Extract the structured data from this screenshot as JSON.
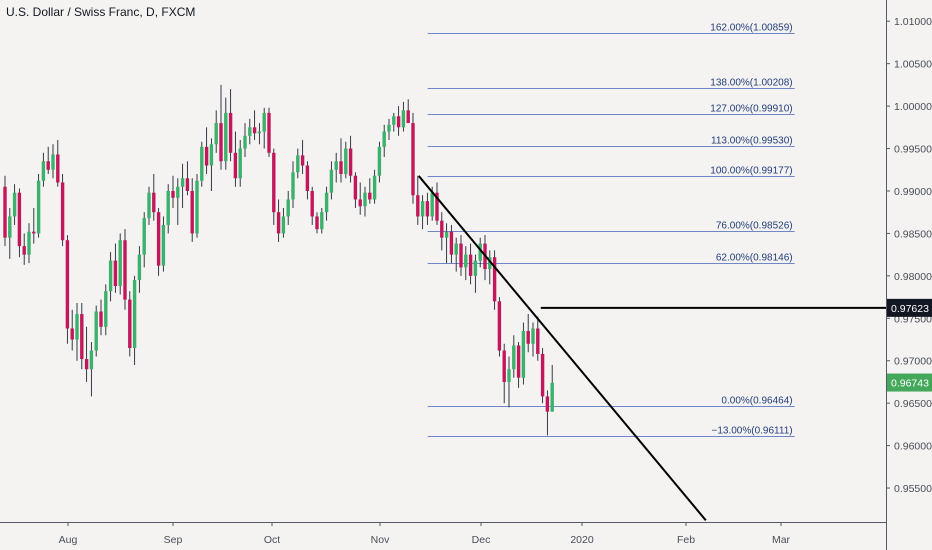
{
  "chart_data": {
    "type": "candlestick",
    "title": "U.S. Dollar / Swiss Franc, D, FXCM",
    "ylim": [
      0.951,
      1.0125
    ],
    "y_ticks": [
      "1.01000",
      "1.00500",
      "1.00000",
      "0.99500",
      "0.99000",
      "0.98500",
      "0.98000",
      "0.97500",
      "0.97000",
      "0.96500",
      "0.96000",
      "0.95500"
    ],
    "x_ticks": [
      {
        "label": "Aug",
        "x": 0
      },
      {
        "label": "Sep",
        "x": 21
      },
      {
        "label": "Oct",
        "x": 41
      },
      {
        "label": "Nov",
        "x": 64
      },
      {
        "label": "Dec",
        "x": 85
      },
      {
        "label": "2020",
        "x": 107
      },
      {
        "label": "Feb",
        "x": 127
      },
      {
        "label": "Mar",
        "x": 145
      }
    ],
    "candles": [
      {
        "o": 0.9905,
        "h": 0.9918,
        "l": 0.9835,
        "c": 0.9845
      },
      {
        "o": 0.9845,
        "h": 0.988,
        "l": 0.982,
        "c": 0.987
      },
      {
        "o": 0.987,
        "h": 0.9908,
        "l": 0.986,
        "c": 0.9898
      },
      {
        "o": 0.9898,
        "h": 0.9903,
        "l": 0.9822,
        "c": 0.9835
      },
      {
        "o": 0.9835,
        "h": 0.985,
        "l": 0.9813,
        "c": 0.9825
      },
      {
        "o": 0.9825,
        "h": 0.9862,
        "l": 0.9815,
        "c": 0.9852
      },
      {
        "o": 0.9852,
        "h": 0.988,
        "l": 0.9838,
        "c": 0.985
      },
      {
        "o": 0.985,
        "h": 0.992,
        "l": 0.9845,
        "c": 0.9912
      },
      {
        "o": 0.9912,
        "h": 0.9945,
        "l": 0.9905,
        "c": 0.9935
      },
      {
        "o": 0.9935,
        "h": 0.9952,
        "l": 0.992,
        "c": 0.9925
      },
      {
        "o": 0.9925,
        "h": 0.9955,
        "l": 0.9915,
        "c": 0.9943
      },
      {
        "o": 0.9943,
        "h": 0.996,
        "l": 0.9905,
        "c": 0.991
      },
      {
        "o": 0.991,
        "h": 0.992,
        "l": 0.9835,
        "c": 0.9842
      },
      {
        "o": 0.9842,
        "h": 0.9848,
        "l": 0.972,
        "c": 0.9738
      },
      {
        "o": 0.9738,
        "h": 0.976,
        "l": 0.9712,
        "c": 0.9725
      },
      {
        "o": 0.9725,
        "h": 0.9768,
        "l": 0.97,
        "c": 0.9755
      },
      {
        "o": 0.9755,
        "h": 0.9768,
        "l": 0.969,
        "c": 0.9702
      },
      {
        "o": 0.9702,
        "h": 0.974,
        "l": 0.9675,
        "c": 0.969
      },
      {
        "o": 0.969,
        "h": 0.9722,
        "l": 0.9658,
        "c": 0.9712
      },
      {
        "o": 0.9712,
        "h": 0.9765,
        "l": 0.9705,
        "c": 0.9758
      },
      {
        "o": 0.9758,
        "h": 0.9772,
        "l": 0.973,
        "c": 0.974
      },
      {
        "o": 0.974,
        "h": 0.979,
        "l": 0.973,
        "c": 0.9782
      },
      {
        "o": 0.9782,
        "h": 0.9828,
        "l": 0.977,
        "c": 0.9818
      },
      {
        "o": 0.9818,
        "h": 0.9838,
        "l": 0.978,
        "c": 0.9788
      },
      {
        "o": 0.9788,
        "h": 0.985,
        "l": 0.9778,
        "c": 0.9842
      },
      {
        "o": 0.9842,
        "h": 0.9855,
        "l": 0.976,
        "c": 0.9772
      },
      {
        "o": 0.9772,
        "h": 0.9782,
        "l": 0.9705,
        "c": 0.9715
      },
      {
        "o": 0.9715,
        "h": 0.98,
        "l": 0.9695,
        "c": 0.9795
      },
      {
        "o": 0.9795,
        "h": 0.9835,
        "l": 0.978,
        "c": 0.9825
      },
      {
        "o": 0.9825,
        "h": 0.9875,
        "l": 0.981,
        "c": 0.9868
      },
      {
        "o": 0.9868,
        "h": 0.9905,
        "l": 0.986,
        "c": 0.9898
      },
      {
        "o": 0.9898,
        "h": 0.992,
        "l": 0.9865,
        "c": 0.9875
      },
      {
        "o": 0.9875,
        "h": 0.988,
        "l": 0.98,
        "c": 0.9812
      },
      {
        "o": 0.9812,
        "h": 0.987,
        "l": 0.9805,
        "c": 0.986
      },
      {
        "o": 0.986,
        "h": 0.9908,
        "l": 0.985,
        "c": 0.99
      },
      {
        "o": 0.99,
        "h": 0.9918,
        "l": 0.988,
        "c": 0.9892
      },
      {
        "o": 0.9892,
        "h": 0.9915,
        "l": 0.986,
        "c": 0.9905
      },
      {
        "o": 0.9905,
        "h": 0.9932,
        "l": 0.988,
        "c": 0.9915
      },
      {
        "o": 0.9915,
        "h": 0.9935,
        "l": 0.9895,
        "c": 0.99
      },
      {
        "o": 0.99,
        "h": 0.9915,
        "l": 0.984,
        "c": 0.985
      },
      {
        "o": 0.985,
        "h": 0.992,
        "l": 0.9845,
        "c": 0.9912
      },
      {
        "o": 0.9912,
        "h": 0.9958,
        "l": 0.9905,
        "c": 0.9952
      },
      {
        "o": 0.9952,
        "h": 0.9975,
        "l": 0.992,
        "c": 0.993
      },
      {
        "o": 0.993,
        "h": 0.9962,
        "l": 0.99,
        "c": 0.9955
      },
      {
        "o": 0.9955,
        "h": 0.9995,
        "l": 0.9945,
        "c": 0.998
      },
      {
        "o": 0.998,
        "h": 1.0025,
        "l": 0.9925,
        "c": 0.9935
      },
      {
        "o": 0.9935,
        "h": 1.001,
        "l": 0.9925,
        "c": 0.9992
      },
      {
        "o": 0.9992,
        "h": 1.002,
        "l": 0.9935,
        "c": 0.9945
      },
      {
        "o": 0.9945,
        "h": 0.997,
        "l": 0.9905,
        "c": 0.9915
      },
      {
        "o": 0.9915,
        "h": 0.996,
        "l": 0.9905,
        "c": 0.995
      },
      {
        "o": 0.995,
        "h": 0.998,
        "l": 0.994,
        "c": 0.9965
      },
      {
        "o": 0.9965,
        "h": 0.9985,
        "l": 0.9955,
        "c": 0.9975
      },
      {
        "o": 0.9975,
        "h": 0.9995,
        "l": 0.996,
        "c": 0.9968
      },
      {
        "o": 0.9968,
        "h": 0.998,
        "l": 0.9955,
        "c": 0.997
      },
      {
        "o": 0.997,
        "h": 0.9998,
        "l": 0.995,
        "c": 0.9992
      },
      {
        "o": 0.9992,
        "h": 0.9998,
        "l": 0.994,
        "c": 0.9945
      },
      {
        "o": 0.9945,
        "h": 0.995,
        "l": 0.986,
        "c": 0.9875
      },
      {
        "o": 0.9875,
        "h": 0.989,
        "l": 0.984,
        "c": 0.985
      },
      {
        "o": 0.985,
        "h": 0.988,
        "l": 0.9845,
        "c": 0.987
      },
      {
        "o": 0.987,
        "h": 0.99,
        "l": 0.986,
        "c": 0.989
      },
      {
        "o": 0.989,
        "h": 0.9935,
        "l": 0.988,
        "c": 0.9922
      },
      {
        "o": 0.9922,
        "h": 0.995,
        "l": 0.9915,
        "c": 0.9942
      },
      {
        "o": 0.9942,
        "h": 0.996,
        "l": 0.992,
        "c": 0.993
      },
      {
        "o": 0.993,
        "h": 0.9935,
        "l": 0.989,
        "c": 0.99
      },
      {
        "o": 0.99,
        "h": 0.9905,
        "l": 0.986,
        "c": 0.987
      },
      {
        "o": 0.987,
        "h": 0.9875,
        "l": 0.985,
        "c": 0.9855
      },
      {
        "o": 0.9855,
        "h": 0.988,
        "l": 0.985,
        "c": 0.9875
      },
      {
        "o": 0.9875,
        "h": 0.9905,
        "l": 0.9865,
        "c": 0.9898
      },
      {
        "o": 0.9898,
        "h": 0.9935,
        "l": 0.989,
        "c": 0.9925
      },
      {
        "o": 0.9925,
        "h": 0.9945,
        "l": 0.991,
        "c": 0.9935
      },
      {
        "o": 0.9935,
        "h": 0.9962,
        "l": 0.991,
        "c": 0.992
      },
      {
        "o": 0.992,
        "h": 0.9958,
        "l": 0.9915,
        "c": 0.995
      },
      {
        "o": 0.995,
        "h": 0.9965,
        "l": 0.991,
        "c": 0.9918
      },
      {
        "o": 0.9918,
        "h": 0.9922,
        "l": 0.988,
        "c": 0.989
      },
      {
        "o": 0.989,
        "h": 0.991,
        "l": 0.9872,
        "c": 0.9882
      },
      {
        "o": 0.9882,
        "h": 0.9905,
        "l": 0.987,
        "c": 0.9898
      },
      {
        "o": 0.9898,
        "h": 0.9915,
        "l": 0.9885,
        "c": 0.989
      },
      {
        "o": 0.989,
        "h": 0.9925,
        "l": 0.9885,
        "c": 0.9918
      },
      {
        "o": 0.9918,
        "h": 0.9958,
        "l": 0.991,
        "c": 0.9952
      },
      {
        "o": 0.9952,
        "h": 0.9978,
        "l": 0.994,
        "c": 0.997
      },
      {
        "o": 0.997,
        "h": 0.9985,
        "l": 0.996,
        "c": 0.9978
      },
      {
        "o": 0.9978,
        "h": 0.9992,
        "l": 0.997,
        "c": 0.9988
      },
      {
        "o": 0.9988,
        "h": 1.0,
        "l": 0.9965,
        "c": 0.9975
      },
      {
        "o": 0.9975,
        "h": 1.0005,
        "l": 0.997,
        "c": 0.9995
      },
      {
        "o": 0.9995,
        "h": 1.0008,
        "l": 0.9985,
        "c": 0.998
      },
      {
        "o": 0.998,
        "h": 0.9992,
        "l": 0.9885,
        "c": 0.9895
      },
      {
        "o": 0.9895,
        "h": 0.9918,
        "l": 0.986,
        "c": 0.987
      },
      {
        "o": 0.987,
        "h": 0.9895,
        "l": 0.9855,
        "c": 0.9888
      },
      {
        "o": 0.9888,
        "h": 0.9898,
        "l": 0.986,
        "c": 0.987
      },
      {
        "o": 0.987,
        "h": 0.9905,
        "l": 0.9865,
        "c": 0.9898
      },
      {
        "o": 0.9898,
        "h": 0.991,
        "l": 0.986,
        "c": 0.9865
      },
      {
        "o": 0.9865,
        "h": 0.9875,
        "l": 0.983,
        "c": 0.9845
      },
      {
        "o": 0.9845,
        "h": 0.9862,
        "l": 0.9815,
        "c": 0.9852
      },
      {
        "o": 0.9852,
        "h": 0.986,
        "l": 0.9815,
        "c": 0.9825
      },
      {
        "o": 0.9825,
        "h": 0.9845,
        "l": 0.9805,
        "c": 0.9838
      },
      {
        "o": 0.9838,
        "h": 0.9848,
        "l": 0.98,
        "c": 0.981
      },
      {
        "o": 0.981,
        "h": 0.9835,
        "l": 0.9795,
        "c": 0.9825
      },
      {
        "o": 0.9825,
        "h": 0.9838,
        "l": 0.979,
        "c": 0.98
      },
      {
        "o": 0.98,
        "h": 0.9825,
        "l": 0.978,
        "c": 0.9818
      },
      {
        "o": 0.9818,
        "h": 0.9845,
        "l": 0.981,
        "c": 0.9838
      },
      {
        "o": 0.9838,
        "h": 0.9848,
        "l": 0.9795,
        "c": 0.9808
      },
      {
        "o": 0.9808,
        "h": 0.983,
        "l": 0.979,
        "c": 0.9822
      },
      {
        "o": 0.9822,
        "h": 0.983,
        "l": 0.976,
        "c": 0.977
      },
      {
        "o": 0.977,
        "h": 0.9775,
        "l": 0.9705,
        "c": 0.9712
      },
      {
        "o": 0.9712,
        "h": 0.972,
        "l": 0.965,
        "c": 0.9675
      },
      {
        "o": 0.9675,
        "h": 0.9705,
        "l": 0.9645,
        "c": 0.969
      },
      {
        "o": 0.969,
        "h": 0.973,
        "l": 0.968,
        "c": 0.9718
      },
      {
        "o": 0.9718,
        "h": 0.9722,
        "l": 0.9668,
        "c": 0.968
      },
      {
        "o": 0.968,
        "h": 0.9745,
        "l": 0.9672,
        "c": 0.9735
      },
      {
        "o": 0.9735,
        "h": 0.9755,
        "l": 0.971,
        "c": 0.972
      },
      {
        "o": 0.972,
        "h": 0.9745,
        "l": 0.9705,
        "c": 0.9738
      },
      {
        "o": 0.9738,
        "h": 0.9752,
        "l": 0.97,
        "c": 0.9708
      },
      {
        "o": 0.9708,
        "h": 0.9715,
        "l": 0.965,
        "c": 0.9658
      },
      {
        "o": 0.9658,
        "h": 0.9665,
        "l": 0.9612,
        "c": 0.964
      },
      {
        "o": 0.964,
        "h": 0.9695,
        "l": 0.964,
        "c": 0.9674
      }
    ],
    "fib_levels": [
      {
        "label": "162.00%(1.00859)",
        "price": 1.00859
      },
      {
        "label": "138.00%(1.00208)",
        "price": 1.00208
      },
      {
        "label": "127.00%(0.99910)",
        "price": 0.9991
      },
      {
        "label": "113.00%(0.99530)",
        "price": 0.9953
      },
      {
        "label": "100.00%(0.99177)",
        "price": 0.99177
      },
      {
        "label": "76.00%(0.98526)",
        "price": 0.98526
      },
      {
        "label": "62.00%(0.98146)",
        "price": 0.98146
      },
      {
        "label": "0.00%(0.96464)",
        "price": 0.96464
      },
      {
        "label": "−13.00%(0.96111)",
        "price": 0.96111
      }
    ],
    "horizontal_level": {
      "label": "0.97623",
      "price": 0.97623
    },
    "last_price": {
      "label": "0.96743",
      "price": 0.96743
    },
    "trendline": [
      {
        "x": 86.2,
        "price": 0.99177
      },
      {
        "x": 146.0,
        "price": 0.9512
      }
    ],
    "segment": {
      "x1": 111.0,
      "x2": 152.0,
      "price": 0.97623
    },
    "fib_range": {
      "x_start": 87,
      "x_end": 152
    },
    "colors": {
      "up": "#26a69a",
      "down": "#ef5350",
      "up_candle": "#3bb16b",
      "down_candle": "#c2185b",
      "fib_line": "#6f87c8",
      "fib_text": "#233d7a",
      "last_price_bg": "#43a85a",
      "level_bg": "#131722",
      "axis_text": "#4a4d57",
      "drawing": "#000000"
    }
  }
}
